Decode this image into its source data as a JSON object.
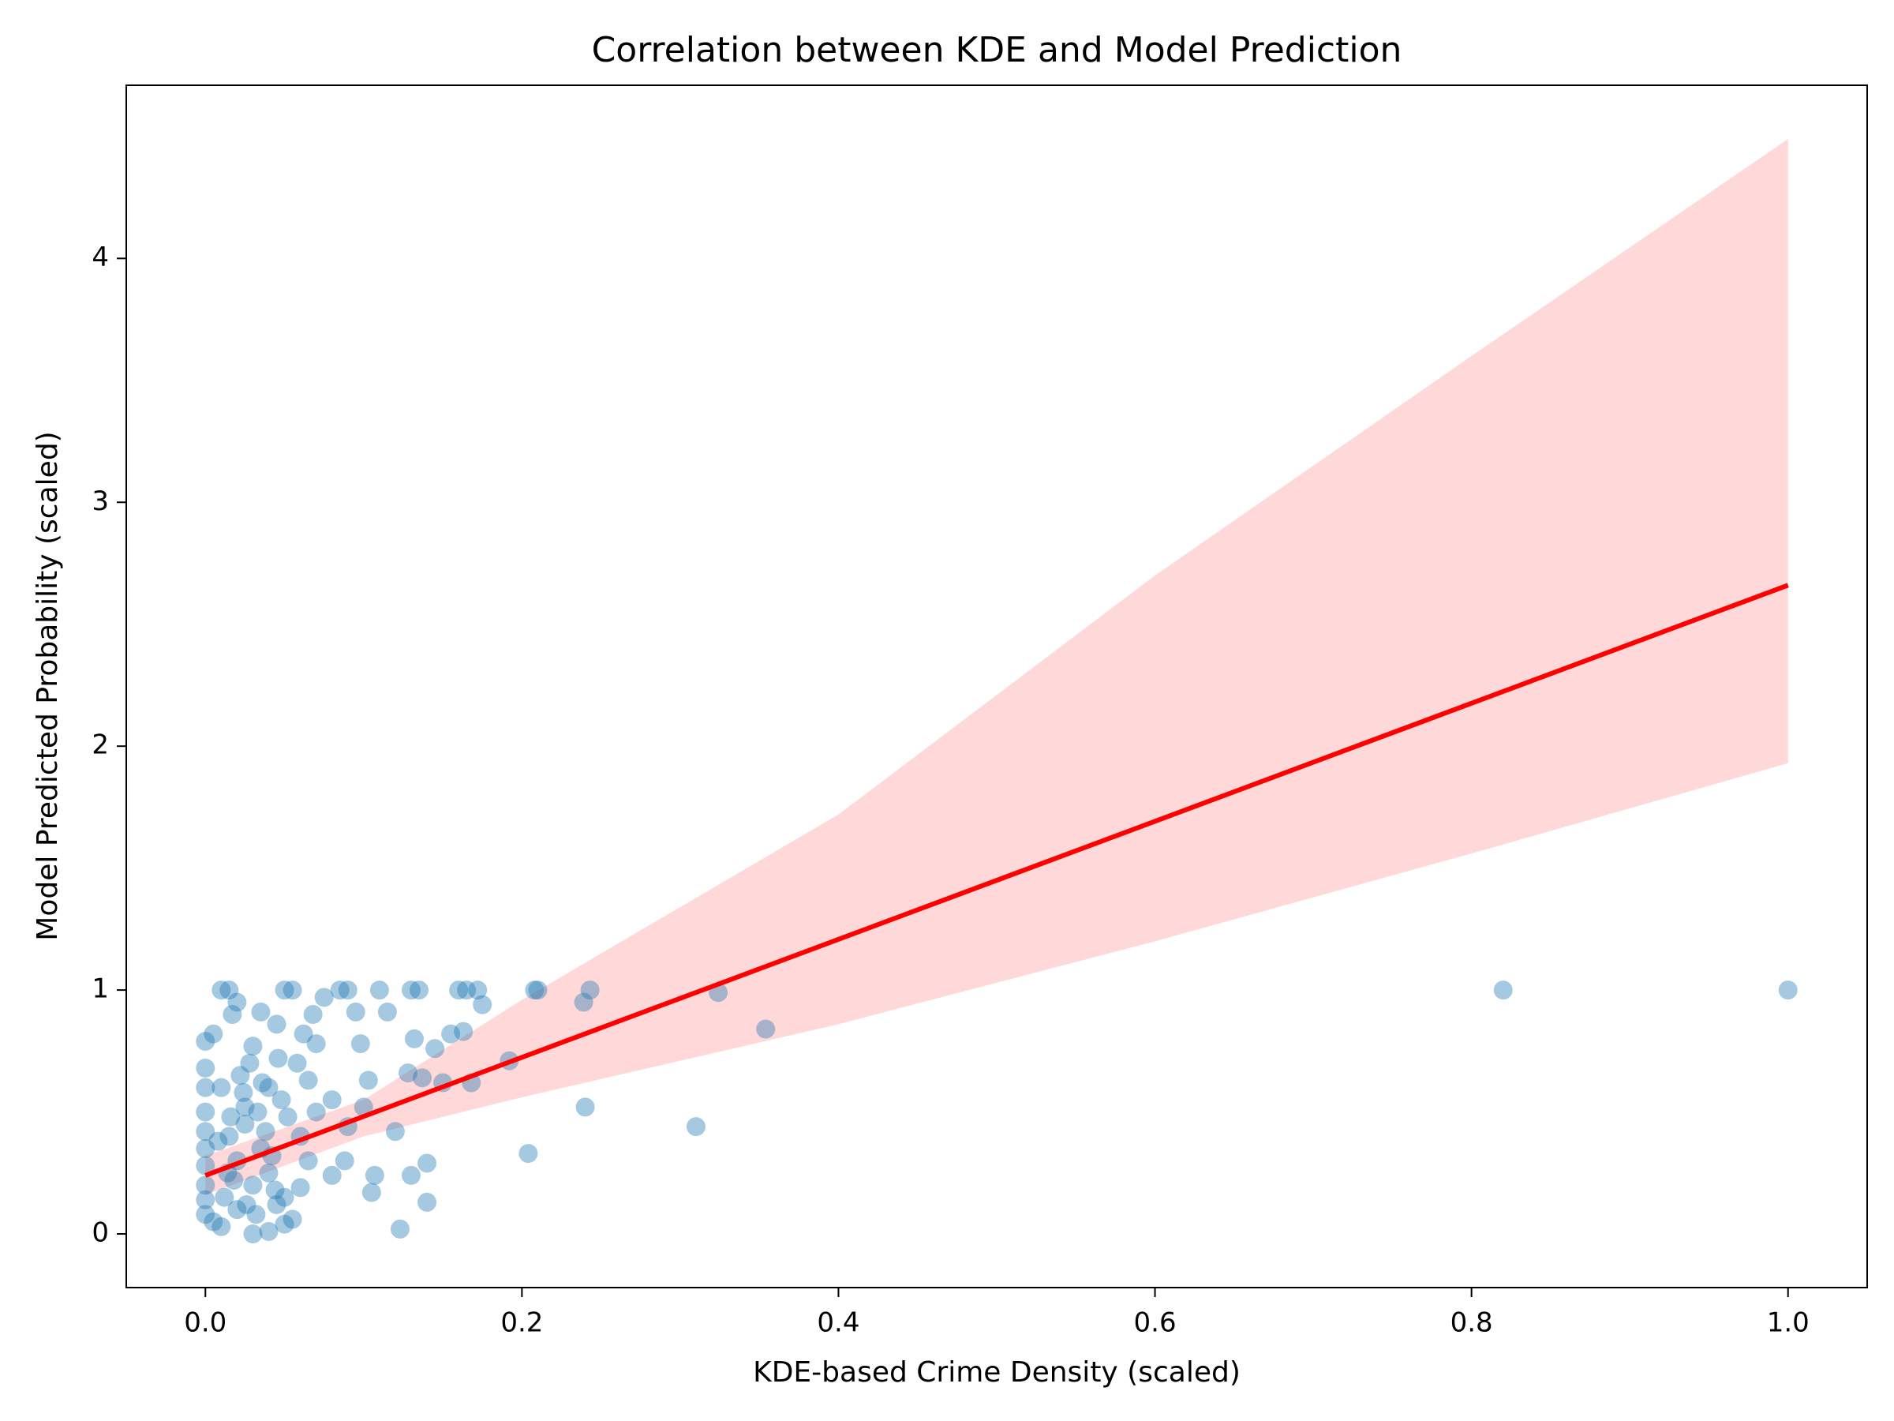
{
  "chart_data": {
    "type": "scatter",
    "title": "Correlation between KDE and Model Prediction",
    "x_label": "KDE-based Crime Density (scaled)",
    "y_label": "Model Predicted Probability (scaled)",
    "xlim": [
      -0.05,
      1.05
    ],
    "ylim": [
      -0.22,
      4.71
    ],
    "xticks": [
      {
        "value": 0,
        "label": "0.0"
      },
      {
        "value": 0.2,
        "label": "0.2"
      },
      {
        "value": 0.4,
        "label": "0.4"
      },
      {
        "value": 0.6,
        "label": "0.6"
      },
      {
        "value": 0.8,
        "label": "0.8"
      },
      {
        "value": 1,
        "label": "1.0"
      }
    ],
    "yticks": [
      0,
      1,
      2,
      3,
      4
    ],
    "grid": false,
    "series": [
      {
        "name": "points",
        "color": "#1f77b4",
        "x": [
          0.82,
          1.0,
          0.354,
          0.31,
          0.324,
          0.24,
          0.243,
          0.239,
          0.208,
          0.21,
          0.204,
          0.192,
          0.175,
          0.172,
          0.165,
          0.16,
          0.168,
          0.163,
          0.15,
          0.155,
          0.145,
          0.14,
          0.14,
          0.13,
          0.123,
          0.12,
          0.128,
          0.132,
          0.137,
          0.135,
          0.13,
          0.11,
          0.115,
          0.107,
          0.105,
          0.103,
          0.098,
          0.1,
          0.095,
          0.09,
          0.085,
          0.08,
          0.088,
          0.09,
          0.075,
          0.07,
          0.065,
          0.06,
          0.055,
          0.05,
          0.045,
          0.04,
          0.035,
          0.03,
          0.025,
          0.02,
          0.015,
          0.01,
          0.017,
          0.005,
          0.0,
          0.0,
          0.0,
          0.0,
          0.0,
          0.0,
          0.0,
          0.0,
          0.0,
          0.0,
          0.005,
          0.01,
          0.02,
          0.03,
          0.04,
          0.05,
          0.055,
          0.045,
          0.03,
          0.02,
          0.015,
          0.025,
          0.035,
          0.04,
          0.05,
          0.06,
          0.07,
          0.08,
          0.065,
          0.01,
          0.012,
          0.018,
          0.022,
          0.028,
          0.033,
          0.038,
          0.042,
          0.048,
          0.052,
          0.058,
          0.062,
          0.068,
          0.008,
          0.014,
          0.026,
          0.032,
          0.044,
          0.016,
          0.024,
          0.036,
          0.046
        ],
        "values": [
          1.0,
          1.0,
          0.84,
          0.44,
          0.99,
          0.52,
          1.0,
          0.95,
          1.0,
          1.0,
          0.33,
          0.71,
          0.94,
          1.0,
          1.0,
          1.0,
          0.62,
          0.83,
          0.62,
          0.82,
          0.76,
          0.13,
          0.29,
          0.24,
          0.02,
          0.42,
          0.66,
          0.8,
          0.64,
          1.0,
          1.0,
          1.0,
          0.91,
          0.24,
          0.17,
          0.63,
          0.78,
          0.52,
          0.91,
          1.0,
          1.0,
          0.24,
          0.3,
          0.44,
          0.97,
          0.78,
          0.63,
          0.19,
          1.0,
          1.0,
          0.86,
          0.6,
          0.91,
          0.77,
          0.52,
          0.95,
          1.0,
          1.0,
          0.9,
          0.82,
          0.79,
          0.68,
          0.6,
          0.5,
          0.42,
          0.35,
          0.28,
          0.2,
          0.14,
          0.08,
          0.05,
          0.03,
          0.1,
          0.0,
          0.01,
          0.04,
          0.06,
          0.12,
          0.2,
          0.3,
          0.4,
          0.45,
          0.35,
          0.25,
          0.15,
          0.4,
          0.5,
          0.55,
          0.3,
          0.6,
          0.15,
          0.22,
          0.65,
          0.7,
          0.5,
          0.42,
          0.32,
          0.55,
          0.48,
          0.7,
          0.82,
          0.9,
          0.38,
          0.25,
          0.12,
          0.08,
          0.18,
          0.48,
          0.58,
          0.62,
          0.72
        ]
      }
    ],
    "regression": {
      "color": "#ff0000",
      "x": [
        0,
        1
      ],
      "values": [
        0.24,
        2.66
      ]
    },
    "confidence_band": {
      "color": "#ff0000",
      "x": [
        0,
        0.1,
        0.2,
        0.4,
        0.6,
        0.8,
        1
      ],
      "lower": [
        0.16,
        0.4,
        0.56,
        0.86,
        1.2,
        1.56,
        1.93
      ],
      "upper": [
        0.32,
        0.55,
        0.96,
        1.72,
        2.7,
        3.6,
        4.49
      ]
    }
  }
}
